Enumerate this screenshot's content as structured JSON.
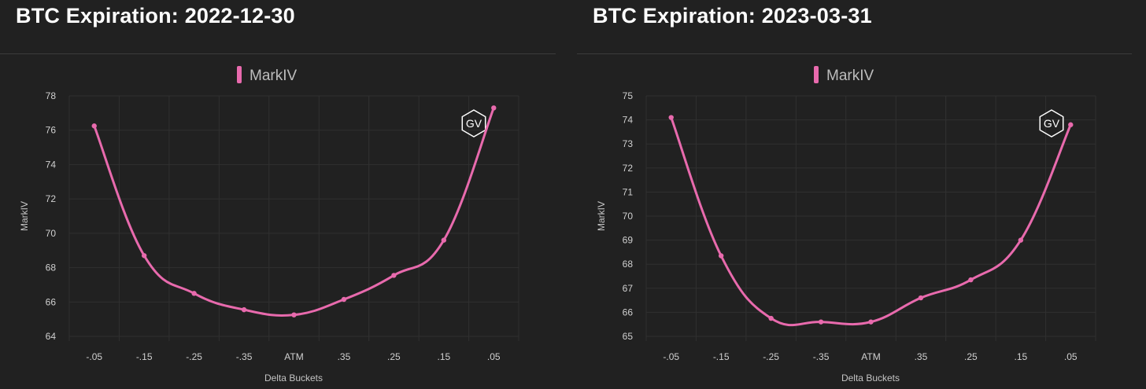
{
  "chart_data": [
    {
      "type": "line",
      "title": "BTC Expiration: 2022-12-30",
      "legend": "MarkIV",
      "xlabel": "Delta Buckets",
      "ylabel": "MarkIV",
      "categories": [
        "-.05",
        "-.15",
        "-.25",
        "-.35",
        "ATM",
        ".35",
        ".25",
        ".15",
        ".05"
      ],
      "series": [
        {
          "name": "MarkIV",
          "values": [
            76.25,
            68.7,
            66.5,
            65.55,
            65.25,
            66.15,
            67.55,
            69.6,
            77.3
          ]
        }
      ],
      "ylim": [
        64,
        78
      ],
      "yticks": [
        64,
        66,
        68,
        70,
        72,
        74,
        76,
        78
      ],
      "grid": true,
      "legend_position": "top-center",
      "watermark": "GV",
      "colors": {
        "line": "#e86aad",
        "background": "#212121",
        "grid": "#303030"
      }
    },
    {
      "type": "line",
      "title": "BTC Expiration: 2023-03-31",
      "legend": "MarkIV",
      "xlabel": "Delta Buckets",
      "ylabel": "MarkIV",
      "categories": [
        "-.05",
        "-.15",
        "-.25",
        "-.35",
        "ATM",
        ".35",
        ".25",
        ".15",
        ".05"
      ],
      "series": [
        {
          "name": "MarkIV",
          "values": [
            74.1,
            68.35,
            65.75,
            65.6,
            65.6,
            66.6,
            67.35,
            69.0,
            73.8
          ]
        }
      ],
      "ylim": [
        65,
        75
      ],
      "yticks": [
        65,
        66,
        67,
        68,
        69,
        70,
        71,
        72,
        73,
        74,
        75
      ],
      "grid": true,
      "legend_position": "top-center",
      "watermark": "GV",
      "colors": {
        "line": "#e86aad",
        "background": "#212121",
        "grid": "#303030"
      }
    }
  ]
}
